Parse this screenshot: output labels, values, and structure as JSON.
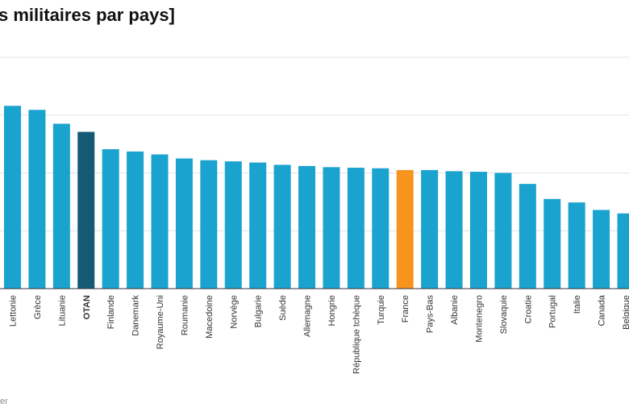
{
  "title": "s militaires par pays]",
  "footer": "er",
  "chart_data": {
    "type": "bar",
    "title": "s militaires par pays]",
    "ylim": [
      0,
      4
    ],
    "grid": true,
    "categories": [
      "Lettonie",
      "Grèce",
      "Lituanie",
      "OTAN",
      "Finlande",
      "Danemark",
      "Royaume-Uni",
      "Roumanie",
      "Macedoine",
      "Norvège",
      "Bulgarie",
      "Suède",
      "Allemagne",
      "Hongrie",
      "République tchèque",
      "Turquie",
      "France",
      "Pays-Bas",
      "Albanie",
      "Montenegro",
      "Slovaquie",
      "Croatie",
      "Portugal",
      "Italie",
      "Canada",
      "Belgique"
    ],
    "values": [
      3.16,
      3.09,
      2.85,
      2.71,
      2.41,
      2.37,
      2.32,
      2.25,
      2.22,
      2.2,
      2.18,
      2.14,
      2.12,
      2.1,
      2.09,
      2.08,
      2.05,
      2.05,
      2.03,
      2.02,
      2.0,
      1.81,
      1.55,
      1.49,
      1.36,
      1.3
    ],
    "highlights": {
      "OTAN": "#155a75",
      "France": "#f7941d"
    },
    "colors": {
      "bar": "#1aa3cf",
      "otan": "#155a75",
      "france": "#f7941d",
      "grid": "#e2e2e2",
      "axis": "#333333"
    }
  }
}
